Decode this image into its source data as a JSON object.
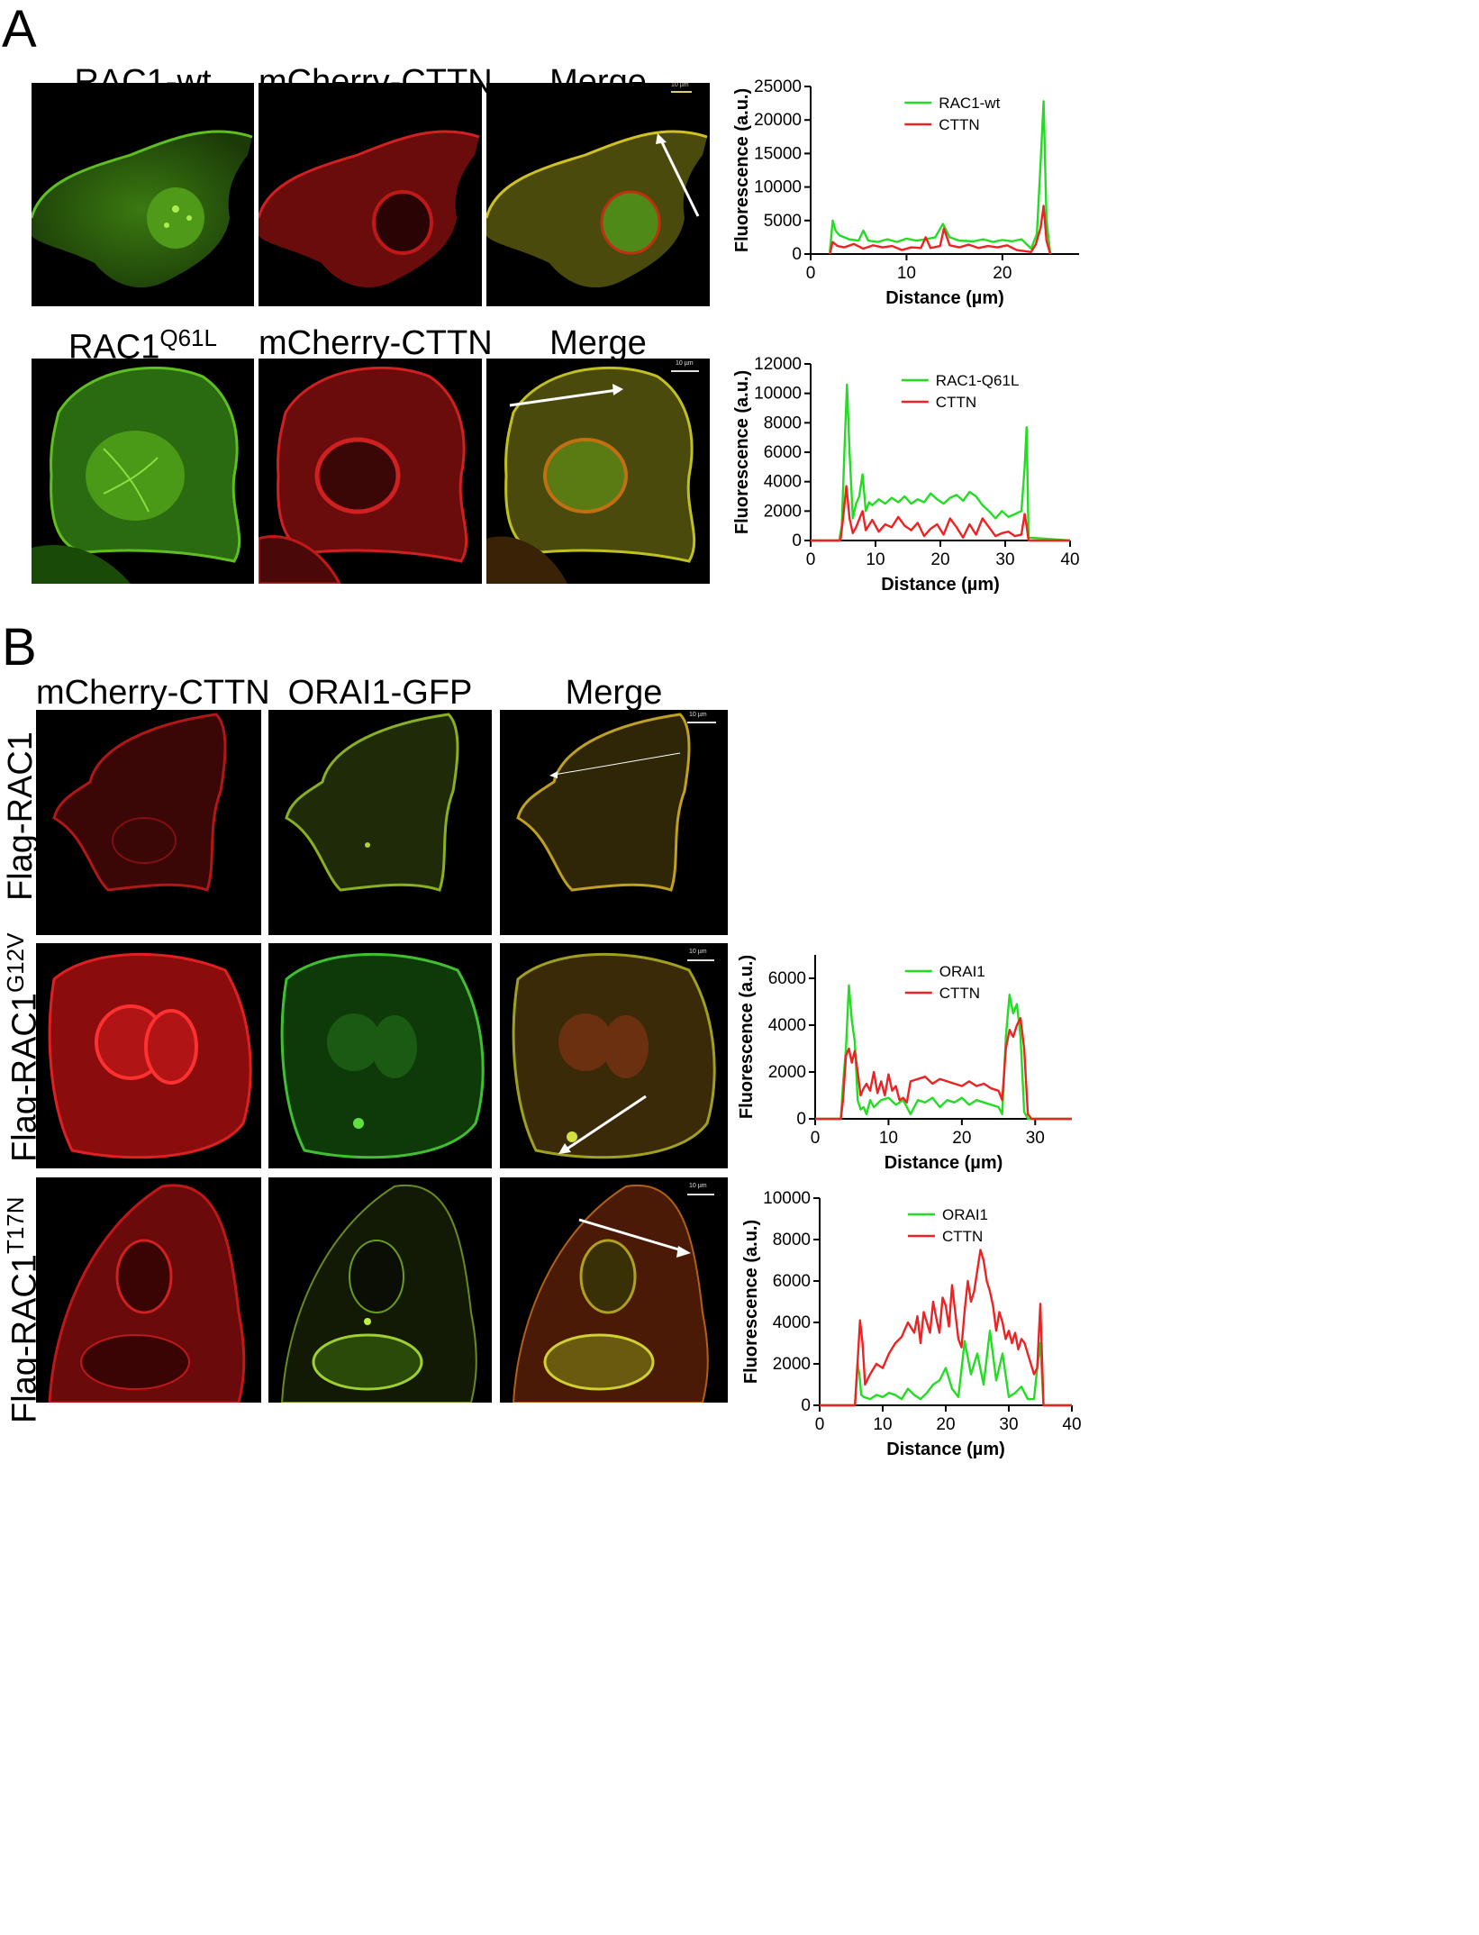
{
  "panel_a": {
    "letter": "A",
    "row1": {
      "labels": [
        "RAC1-wt",
        "mCherry-CTTN",
        "Merge"
      ]
    },
    "row2": {
      "label_main": "RAC1",
      "label_sup": "Q61L",
      "labels": [
        "mCherry-CTTN",
        "Merge"
      ]
    },
    "scale_bar": "10 µm"
  },
  "panel_b": {
    "letter": "B",
    "col_labels": [
      "mCherry-CTTN",
      "ORAI1-GFP",
      "Merge"
    ],
    "rows": [
      {
        "main": "Flag-RAC1",
        "sup": ""
      },
      {
        "main": "Flag-RAC1",
        "sup": "G12V"
      },
      {
        "main": "Flag-RAC1",
        "sup": "T17N"
      }
    ],
    "scale_bar": "10 µm"
  },
  "colors": {
    "green": "#22dd22",
    "red": "#ee2222"
  },
  "chart_data": [
    {
      "type": "line",
      "xlabel": "Distance (µm)",
      "ylabel": "Fluorescence (a.u.)",
      "xlim": [
        0,
        28
      ],
      "ylim": [
        0,
        25000
      ],
      "xticks": [
        0,
        10,
        20
      ],
      "yticks": [
        0,
        5000,
        10000,
        15000,
        20000,
        25000
      ],
      "legend_position": "top-center",
      "series": [
        {
          "name": "RAC1-wt",
          "color": "#22dd22",
          "x": [
            2.0,
            2.3,
            2.6,
            3.0,
            4.0,
            5.0,
            5.5,
            6.0,
            7.0,
            8.0,
            9.0,
            10.0,
            11.0,
            12.0,
            13.0,
            13.8,
            14.5,
            15.5,
            17.0,
            18.0,
            19.0,
            20.0,
            21.0,
            22.0,
            23.0,
            23.6,
            24.0,
            24.3,
            24.6,
            25.0
          ],
          "y": [
            300,
            5000,
            3500,
            2800,
            2200,
            2000,
            3500,
            2000,
            1800,
            2200,
            1800,
            2300,
            2000,
            2200,
            2500,
            4500,
            2500,
            2000,
            1900,
            2200,
            1800,
            2100,
            1900,
            2200,
            800,
            3000,
            14000,
            22800,
            5000,
            0
          ]
        },
        {
          "name": "CTTN",
          "color": "#ee2222",
          "x": [
            2.0,
            2.3,
            2.8,
            3.5,
            4.5,
            5.5,
            6.5,
            7.5,
            8.5,
            9.5,
            10.5,
            11.5,
            12.0,
            12.5,
            13.5,
            13.9,
            14.5,
            15.5,
            16.5,
            17.5,
            18.5,
            19.5,
            20.5,
            21.5,
            22.5,
            23.0,
            23.5,
            24.0,
            24.3,
            24.6,
            25.0
          ],
          "y": [
            0,
            1800,
            1200,
            1000,
            1500,
            800,
            1300,
            1000,
            1200,
            600,
            1000,
            900,
            2500,
            900,
            1200,
            3800,
            1300,
            1000,
            1400,
            900,
            1200,
            1000,
            1300,
            600,
            400,
            300,
            1500,
            4000,
            7200,
            2000,
            0
          ]
        }
      ]
    },
    {
      "type": "line",
      "xlabel": "Distance (µm)",
      "ylabel": "Fluorescence (a.u.)",
      "xlim": [
        0,
        40
      ],
      "ylim": [
        0,
        12000
      ],
      "xticks": [
        0,
        10,
        20,
        30,
        40
      ],
      "yticks": [
        0,
        2000,
        4000,
        6000,
        8000,
        10000,
        12000
      ],
      "legend_position": "top-center",
      "series": [
        {
          "name": "RAC1-Q61L",
          "color": "#22dd22",
          "x": [
            0,
            4.4,
            4.8,
            5.2,
            5.6,
            6.0,
            6.5,
            7.0,
            7.5,
            8.0,
            8.5,
            9.0,
            9.5,
            10.5,
            11.5,
            12.5,
            13.5,
            14.5,
            15.5,
            16.5,
            17.5,
            18.5,
            19.5,
            20.5,
            21.5,
            22.5,
            23.5,
            24.5,
            25.5,
            26.5,
            27.5,
            28.5,
            29.5,
            30.5,
            31.5,
            32.5,
            33.0,
            33.3,
            33.6,
            40
          ],
          "y": [
            0,
            0,
            1000,
            6000,
            10600,
            6000,
            1500,
            2500,
            3000,
            4500,
            2000,
            2600,
            2400,
            2800,
            2500,
            2900,
            2600,
            3000,
            2500,
            2800,
            2600,
            3200,
            2800,
            2500,
            2900,
            3100,
            2700,
            3300,
            3000,
            2400,
            2000,
            1500,
            2000,
            1600,
            1800,
            2000,
            5000,
            7700,
            200,
            0
          ]
        },
        {
          "name": "CTTN",
          "color": "#ee2222",
          "x": [
            0,
            4.6,
            5.0,
            5.5,
            6.0,
            6.5,
            7.0,
            8.0,
            8.5,
            9.5,
            10.5,
            11.5,
            12.5,
            13.5,
            14.5,
            15.5,
            16.5,
            17.5,
            18.5,
            19.5,
            20.5,
            21.5,
            22.5,
            23.5,
            24.5,
            25.5,
            26.5,
            27.5,
            28.5,
            29.5,
            30.5,
            31.5,
            32.5,
            33.0,
            33.3,
            33.6,
            40
          ],
          "y": [
            0,
            0,
            1500,
            3700,
            1500,
            500,
            900,
            2000,
            700,
            1400,
            600,
            1100,
            900,
            1600,
            1000,
            700,
            1200,
            300,
            800,
            1100,
            400,
            1500,
            900,
            200,
            1100,
            400,
            1500,
            900,
            300,
            500,
            600,
            300,
            400,
            1800,
            1000,
            0,
            0
          ]
        }
      ]
    },
    {
      "type": "line",
      "xlabel": "Distance (µm)",
      "ylabel": "Fluorescence (a.u.)",
      "xlim": [
        0,
        35
      ],
      "ylim": [
        0,
        7000
      ],
      "xticks": [
        0,
        10,
        20,
        30
      ],
      "yticks": [
        0,
        2000,
        4000,
        6000
      ],
      "legend_position": "top-center",
      "series": [
        {
          "name": "ORAI1",
          "color": "#22dd22",
          "x": [
            0,
            3.5,
            3.8,
            4.2,
            4.6,
            5.0,
            5.4,
            5.8,
            6.2,
            6.6,
            7.0,
            7.5,
            8.0,
            9.0,
            10.0,
            11.0,
            12.0,
            13.0,
            14.0,
            15.0,
            16.0,
            17.0,
            18.0,
            19.0,
            20.0,
            21.0,
            22.0,
            23.0,
            24.0,
            25.0,
            25.5,
            26.0,
            26.5,
            27.0,
            27.5,
            28.0,
            28.5,
            29.0,
            29.5,
            35
          ],
          "y": [
            0,
            0,
            1500,
            3000,
            5700,
            4200,
            3300,
            800,
            400,
            500,
            200,
            800,
            500,
            800,
            900,
            600,
            800,
            200,
            800,
            700,
            900,
            500,
            800,
            700,
            900,
            600,
            800,
            700,
            600,
            500,
            200,
            3500,
            5300,
            4500,
            4900,
            3500,
            300,
            0,
            0,
            0
          ]
        },
        {
          "name": "CTTN",
          "color": "#ee2222",
          "x": [
            0,
            3.5,
            3.8,
            4.2,
            4.6,
            5.0,
            5.4,
            5.8,
            6.2,
            6.6,
            7.0,
            7.5,
            8.0,
            8.5,
            9.0,
            9.5,
            10.0,
            10.5,
            11.0,
            11.5,
            12.0,
            12.5,
            13.0,
            14.0,
            15.0,
            16.0,
            17.0,
            18.0,
            19.0,
            20.0,
            21.0,
            22.0,
            23.0,
            24.0,
            25.0,
            25.5,
            26.0,
            26.5,
            27.0,
            27.5,
            28.0,
            28.5,
            29.0,
            29.5,
            35
          ],
          "y": [
            0,
            0,
            800,
            2700,
            3000,
            2400,
            2900,
            2000,
            1000,
            1300,
            1500,
            1200,
            2000,
            1100,
            1600,
            1000,
            1900,
            1200,
            1400,
            800,
            900,
            700,
            1600,
            1700,
            1800,
            1500,
            1700,
            1600,
            1500,
            1400,
            1600,
            1400,
            1500,
            1300,
            1200,
            800,
            3000,
            3800,
            3500,
            4000,
            4300,
            3000,
            200,
            0,
            0
          ]
        }
      ]
    },
    {
      "type": "line",
      "xlabel": "Distance (µm)",
      "ylabel": "Fluorescence (a.u.)",
      "xlim": [
        0,
        40
      ],
      "ylim": [
        0,
        10000
      ],
      "xticks": [
        0,
        10,
        20,
        30,
        40
      ],
      "yticks": [
        0,
        2000,
        4000,
        6000,
        8000,
        10000
      ],
      "legend_position": "top-center",
      "series": [
        {
          "name": "ORAI1",
          "color": "#22dd22",
          "x": [
            0,
            5.6,
            6.0,
            6.3,
            6.6,
            7.0,
            8.0,
            9.0,
            10.0,
            11.0,
            12.0,
            13.0,
            14.0,
            15.0,
            16.0,
            17.0,
            18.0,
            19.0,
            20.0,
            21.0,
            22.0,
            23.0,
            24.0,
            25.0,
            26.0,
            27.0,
            28.0,
            29.0,
            30.0,
            31.0,
            32.0,
            33.0,
            34.0,
            34.5,
            35.0,
            35.5,
            40
          ],
          "y": [
            0,
            0,
            2000,
            1500,
            500,
            400,
            300,
            500,
            400,
            600,
            500,
            300,
            800,
            500,
            300,
            600,
            1000,
            1200,
            1800,
            800,
            400,
            3100,
            1500,
            2500,
            1000,
            3600,
            1200,
            2500,
            400,
            600,
            900,
            300,
            300,
            1800,
            3000,
            0,
            0
          ]
        },
        {
          "name": "CTTN",
          "color": "#ee2222",
          "x": [
            0,
            5.6,
            6.0,
            6.4,
            6.8,
            7.2,
            8.0,
            9.0,
            10.0,
            11.0,
            12.0,
            13.0,
            14.0,
            15.0,
            15.5,
            16.0,
            16.5,
            17.0,
            17.5,
            18.0,
            18.5,
            19.0,
            19.5,
            20.0,
            20.5,
            21.0,
            21.5,
            22.0,
            22.5,
            23.0,
            23.5,
            24.0,
            24.5,
            25.0,
            25.5,
            26.0,
            26.5,
            27.0,
            27.5,
            28.0,
            28.5,
            29.0,
            29.5,
            30.0,
            30.5,
            31.0,
            31.5,
            32.0,
            32.5,
            33.0,
            33.5,
            34.0,
            34.5,
            35.0,
            35.5,
            40
          ],
          "y": [
            0,
            0,
            2000,
            4100,
            3000,
            1000,
            1500,
            2000,
            1800,
            2500,
            3000,
            3300,
            4000,
            3500,
            4300,
            3000,
            4500,
            4000,
            3500,
            5000,
            4200,
            3500,
            5200,
            4800,
            3800,
            5800,
            4500,
            3200,
            2800,
            4600,
            6000,
            5000,
            5500,
            6500,
            7500,
            7000,
            6000,
            5500,
            4800,
            3600,
            4500,
            4000,
            3200,
            3600,
            3000,
            3500,
            2700,
            3200,
            3000,
            2500,
            2000,
            1500,
            1800,
            4900,
            0,
            0
          ]
        }
      ]
    }
  ]
}
